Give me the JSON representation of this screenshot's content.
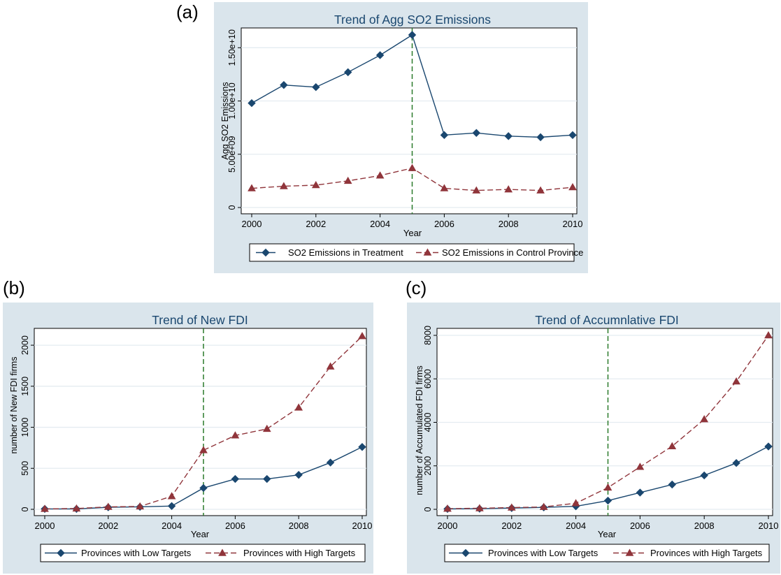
{
  "panels": {
    "a": {
      "label": "(a)"
    },
    "b": {
      "label": "(b)"
    },
    "c": {
      "label": "(c)"
    }
  },
  "colors": {
    "bg": "#dae5ec",
    "plot": "#ffffff",
    "treatment": "#1a476f",
    "control": "#90353b",
    "vline": "#2a7a2a",
    "title": "#1a476f"
  },
  "chart_data": [
    {
      "id": "a",
      "type": "line",
      "title": "Trend of Agg SO2 Emissions",
      "xlabel": "Year",
      "ylabel": "Agg SO2 Emissions",
      "x": [
        2000,
        2001,
        2002,
        2003,
        2004,
        2005,
        2006,
        2007,
        2008,
        2009,
        2010
      ],
      "xticks": [
        2000,
        2002,
        2004,
        2006,
        2008,
        2010
      ],
      "xlim": [
        2000,
        2010
      ],
      "yticks": [
        0,
        5000000000,
        10000000000,
        15000000000
      ],
      "ytick_labels": [
        "0",
        "5.00e+09",
        "1.00e+10",
        "1.50e+10"
      ],
      "ylim": [
        0,
        16200000000
      ],
      "grid": true,
      "legend_position": "bottom",
      "vline_x": 2005,
      "series": [
        {
          "name": "SO2 Emissions in Treatment",
          "style": "solid",
          "marker": "diamond",
          "values": [
            9800000000,
            11500000000,
            11300000000,
            12700000000,
            14300000000,
            16200000000,
            6800000000,
            7000000000,
            6700000000,
            6600000000,
            6800000000
          ]
        },
        {
          "name": "SO2 Emissions in Control Province",
          "style": "dashed",
          "marker": "triangle",
          "values": [
            1800000000,
            2000000000,
            2100000000,
            2500000000,
            3000000000,
            3700000000,
            1800000000,
            1600000000,
            1700000000,
            1600000000,
            1900000000
          ]
        }
      ]
    },
    {
      "id": "b",
      "type": "line",
      "title": "Trend of New FDI",
      "xlabel": "Year",
      "ylabel": "number of New FDI firms",
      "x": [
        2000,
        2001,
        2002,
        2003,
        2004,
        2005,
        2006,
        2007,
        2008,
        2009,
        2010
      ],
      "xticks": [
        2000,
        2002,
        2004,
        2006,
        2008,
        2010
      ],
      "xlim": [
        2000,
        2010
      ],
      "yticks": [
        0,
        500,
        1000,
        1500,
        2000
      ],
      "ytick_labels": [
        "0",
        "500",
        "1000",
        "1500",
        "2000"
      ],
      "ylim": [
        0,
        2120
      ],
      "grid": true,
      "legend_position": "bottom",
      "vline_x": 2005,
      "series": [
        {
          "name": "Provinces with Low Targets",
          "style": "solid",
          "marker": "diamond",
          "values": [
            5,
            5,
            25,
            30,
            40,
            260,
            370,
            370,
            420,
            570,
            760
          ]
        },
        {
          "name": "Provinces with High Targets",
          "style": "dashed",
          "marker": "triangle",
          "values": [
            5,
            10,
            30,
            35,
            160,
            720,
            900,
            980,
            1240,
            1740,
            2110
          ]
        }
      ]
    },
    {
      "id": "c",
      "type": "line",
      "title": "Trend of Accumnlative FDI",
      "xlabel": "Year",
      "ylabel": "number of Accumulated FDI firms",
      "x": [
        2000,
        2001,
        2002,
        2003,
        2004,
        2005,
        2006,
        2007,
        2008,
        2009,
        2010
      ],
      "xticks": [
        2000,
        2002,
        2004,
        2006,
        2008,
        2010
      ],
      "xlim": [
        2000,
        2010
      ],
      "yticks": [
        0,
        2000,
        4000,
        6000,
        8000
      ],
      "ytick_labels": [
        "0",
        "2000",
        "4000",
        "6000",
        "8000"
      ],
      "ylim": [
        0,
        8000
      ],
      "grid": true,
      "legend_position": "bottom",
      "vline_x": 2005,
      "series": [
        {
          "name": "Provinces with Low Targets",
          "style": "solid",
          "marker": "diamond",
          "values": [
            20,
            30,
            60,
            90,
            140,
            400,
            770,
            1140,
            1560,
            2130,
            2890
          ]
        },
        {
          "name": "Provinces with High Targets",
          "style": "dashed",
          "marker": "triangle",
          "values": [
            30,
            50,
            80,
            110,
            280,
            1000,
            1950,
            2900,
            4140,
            5880,
            8000
          ]
        }
      ]
    }
  ]
}
